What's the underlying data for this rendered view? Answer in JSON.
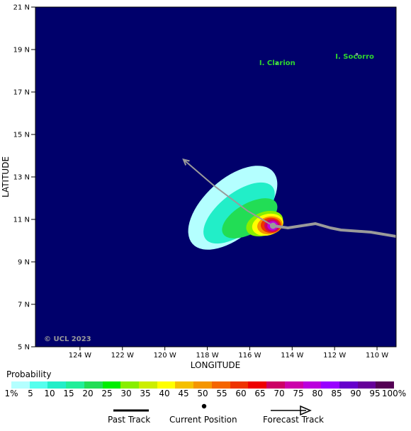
{
  "map": {
    "lat_ticks": [
      {
        "value": 21,
        "label": "21 N"
      },
      {
        "value": 19,
        "label": "19 N"
      },
      {
        "value": 17,
        "label": "17 N"
      },
      {
        "value": 15,
        "label": "15 N"
      },
      {
        "value": 13,
        "label": "13 N"
      },
      {
        "value": 11,
        "label": "11 N"
      },
      {
        "value": 9,
        "label": "9 N"
      },
      {
        "value": 7,
        "label": "7 N"
      },
      {
        "value": 5,
        "label": "5 N"
      }
    ],
    "lon_ticks": [
      {
        "value": -124,
        "label": "124 W"
      },
      {
        "value": -122,
        "label": "122 W"
      },
      {
        "value": -120,
        "label": "120 W"
      },
      {
        "value": -118,
        "label": "118 W"
      },
      {
        "value": -116,
        "label": "116 W"
      },
      {
        "value": -114,
        "label": "114 W"
      },
      {
        "value": -112,
        "label": "112 W"
      },
      {
        "value": -110,
        "label": "110 W"
      }
    ],
    "xlabel": "LONGITUDE",
    "ylabel": "LATITUDE",
    "lon_range": [
      -126.1,
      -109.1
    ],
    "lat_range": [
      5,
      21
    ],
    "background_color": "#00006b",
    "copyright": "© UCL 2023",
    "islands": [
      {
        "name": "I. Clarion",
        "lon": -114.7,
        "lat": 18.35,
        "label_lon": -114.7,
        "label_lat": 18.4
      },
      {
        "name": "I. Socorro",
        "lon": -110.95,
        "lat": 18.78,
        "label_lon": -111.05,
        "label_lat": 18.7
      }
    ],
    "current_position": {
      "lon": -114.9,
      "lat": 10.7
    },
    "past_track": [
      {
        "lon": -114.9,
        "lat": 10.7
      },
      {
        "lon": -114.2,
        "lat": 10.6
      },
      {
        "lon": -112.9,
        "lat": 10.8
      },
      {
        "lon": -112.2,
        "lat": 10.6
      },
      {
        "lon": -111.7,
        "lat": 10.5
      },
      {
        "lon": -110.3,
        "lat": 10.4
      },
      {
        "lon": -109.1,
        "lat": 10.2
      }
    ],
    "forecast_track": [
      {
        "lon": -114.9,
        "lat": 10.7
      },
      {
        "lon": -116.1,
        "lat": 11.4
      },
      {
        "lon": -117.7,
        "lat": 12.6
      },
      {
        "lon": -119.1,
        "lat": 13.8
      }
    ],
    "probability_contours": [
      {
        "level": 1,
        "center_lon": -116.8,
        "center_lat": 11.55,
        "rx_deg": 2.55,
        "ry_deg": 1.35,
        "rotation": 42
      },
      {
        "level": 10,
        "center_lon": -116.5,
        "center_lat": 11.3,
        "rx_deg": 2.0,
        "ry_deg": 0.95,
        "rotation": 38
      },
      {
        "level": 20,
        "center_lon": -116.0,
        "center_lat": 11.05,
        "rx_deg": 1.45,
        "ry_deg": 0.7,
        "rotation": 30
      },
      {
        "level": 30,
        "center_lon": -115.3,
        "center_lat": 10.8,
        "rx_deg": 0.9,
        "ry_deg": 0.55,
        "rotation": 20
      },
      {
        "level": 40,
        "center_lon": -115.15,
        "center_lat": 10.75,
        "rx_deg": 0.75,
        "ry_deg": 0.5,
        "rotation": 15
      },
      {
        "level": 50,
        "center_lon": -115.05,
        "center_lat": 10.72,
        "rx_deg": 0.6,
        "ry_deg": 0.42,
        "rotation": 10
      },
      {
        "level": 60,
        "center_lon": -115.0,
        "center_lat": 10.72,
        "rx_deg": 0.48,
        "ry_deg": 0.36,
        "rotation": 0
      },
      {
        "level": 70,
        "center_lon": -114.95,
        "center_lat": 10.71,
        "rx_deg": 0.36,
        "ry_deg": 0.3,
        "rotation": 0
      },
      {
        "level": 80,
        "center_lon": -114.92,
        "center_lat": 10.7,
        "rx_deg": 0.25,
        "ry_deg": 0.22,
        "rotation": 0
      },
      {
        "level": 90,
        "center_lon": -114.9,
        "center_lat": 10.7,
        "rx_deg": 0.14,
        "ry_deg": 0.13,
        "rotation": 0
      }
    ]
  },
  "legend": {
    "title": "Probability",
    "scale": [
      {
        "label": "1%",
        "color": "#b4ffff"
      },
      {
        "label": "5",
        "color": "#55ffee"
      },
      {
        "label": "10",
        "color": "#22eec8"
      },
      {
        "label": "15",
        "color": "#22ee99"
      },
      {
        "label": "20",
        "color": "#22dd55"
      },
      {
        "label": "25",
        "color": "#00ee00"
      },
      {
        "label": "30",
        "color": "#88ee00"
      },
      {
        "label": "35",
        "color": "#ccee00"
      },
      {
        "label": "40",
        "color": "#ffff00"
      },
      {
        "label": "45",
        "color": "#f5c000"
      },
      {
        "label": "50",
        "color": "#f59500"
      },
      {
        "label": "55",
        "color": "#f56500"
      },
      {
        "label": "60",
        "color": "#ee3300"
      },
      {
        "label": "65",
        "color": "#ee0000"
      },
      {
        "label": "70",
        "color": "#cc0066"
      },
      {
        "label": "75",
        "color": "#cc00aa"
      },
      {
        "label": "80",
        "color": "#bb00dd"
      },
      {
        "label": "85",
        "color": "#9900ff"
      },
      {
        "label": "90",
        "color": "#6600cc"
      },
      {
        "label": "95",
        "color": "#660099"
      },
      {
        "label": "100%",
        "color": "#550055"
      }
    ],
    "track_keys": {
      "past": "Past Track",
      "current": "Current Position",
      "forecast": "Forecast Track"
    }
  }
}
